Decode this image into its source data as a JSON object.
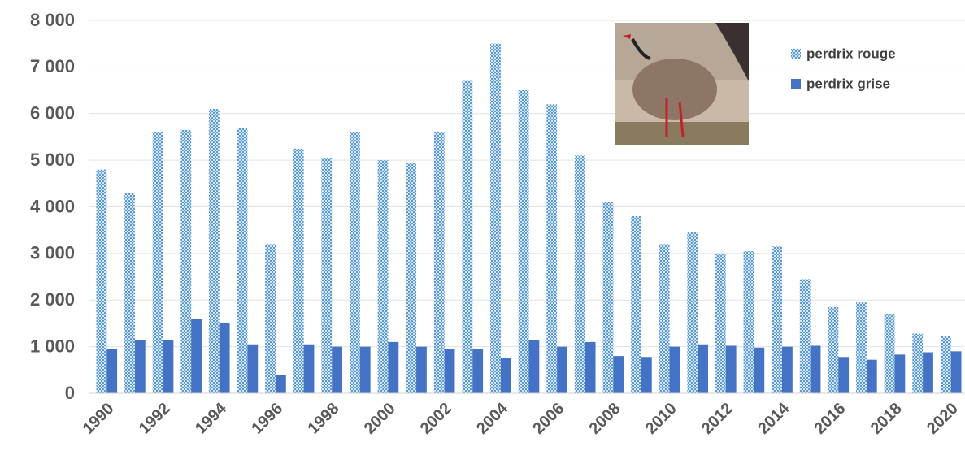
{
  "chart_data": {
    "type": "bar",
    "categories": [
      "1990",
      null,
      "1992",
      null,
      "1994",
      null,
      "1996",
      null,
      "1998",
      null,
      "2000",
      null,
      "2002",
      null,
      "2004",
      null,
      "2006",
      null,
      "2008",
      null,
      "2010",
      null,
      "2012",
      null,
      "2014",
      null,
      "2016",
      null,
      "2018",
      null,
      "2020"
    ],
    "series": [
      {
        "name": "perdrix rouge",
        "color": "#5b9bd5",
        "pattern": "checker",
        "values": [
          4800,
          4300,
          5600,
          5650,
          6100,
          5700,
          3200,
          5250,
          5050,
          5600,
          5000,
          4950,
          5600,
          6700,
          7500,
          6500,
          6200,
          5100,
          4100,
          3800,
          3200,
          3450,
          3000,
          3050,
          3150,
          2450,
          1850,
          1950,
          1700,
          1280,
          1220
        ]
      },
      {
        "name": "perdrix grise",
        "color": "#4472c4",
        "values": [
          950,
          1150,
          1150,
          1600,
          1500,
          1050,
          400,
          1050,
          1000,
          1000,
          1100,
          1000,
          950,
          950,
          750,
          1150,
          1000,
          1100,
          800,
          780,
          1000,
          1050,
          1020,
          980,
          1000,
          1020,
          780,
          720,
          830,
          880,
          900
        ]
      }
    ],
    "ylim": [
      0,
      8000
    ],
    "yticks": [
      0,
      {
        "value": 1000,
        "label": "1 000"
      },
      {
        "value": 2000,
        "label": "2 000"
      },
      {
        "value": 3000,
        "label": "3 000"
      },
      {
        "value": 4000,
        "label": "4 000"
      },
      {
        "value": 5000,
        "label": "5 000"
      },
      {
        "value": 6000,
        "label": "6 000"
      },
      {
        "value": 7000,
        "label": "7 000"
      },
      {
        "value": 8000,
        "label": "8 000"
      }
    ],
    "grid": true,
    "legend": "upper right"
  }
}
